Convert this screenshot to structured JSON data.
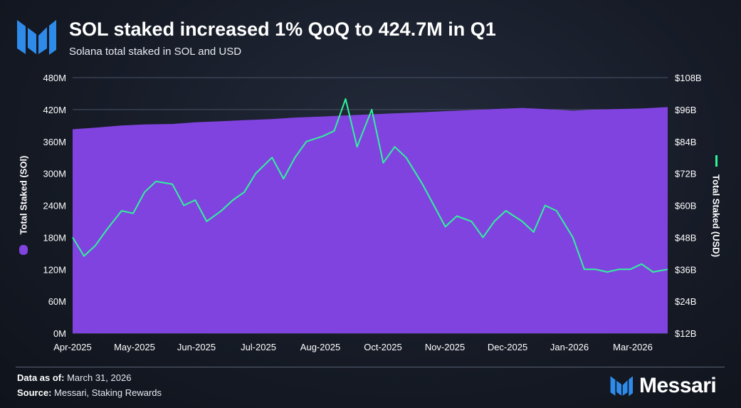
{
  "header": {
    "title": "SOL staked increased 1% QoQ to 424.7M in Q1",
    "subtitle": "Solana total staked in SOL and USD"
  },
  "footer": {
    "data_as_of_label": "Data as of:",
    "data_as_of_value": "March 31, 2026",
    "source_label": "Source:",
    "source_value": "Messari, Staking Rewards",
    "brand": "Messari"
  },
  "colors": {
    "sol_area": "#8143e0",
    "usd_line": "#2ef49a",
    "grid": "#4a5266",
    "brand_blue": "#2e8bea"
  },
  "chart_data": {
    "type": "area",
    "x_ticks": [
      "Apr-2025",
      "May-2025",
      "Jun-2025",
      "Jul-2025",
      "Aug-2025",
      "Oct-2025",
      "Nov-2025",
      "Dec-2025",
      "Jan-2026",
      "Mar-2026"
    ],
    "left_axis": {
      "label": "Total Staked (SOl)",
      "ticks": [
        "0M",
        "60M",
        "120M",
        "180M",
        "240M",
        "300M",
        "360M",
        "420M",
        "480M"
      ],
      "range": [
        0,
        480
      ]
    },
    "right_axis": {
      "label": "Total Staked (USD)",
      "ticks": [
        "$12B",
        "$24B",
        "$36B",
        "$48B",
        "$60B",
        "$72B",
        "$84B",
        "$96B",
        "$108B"
      ],
      "range": [
        12,
        108
      ]
    },
    "grid": true,
    "series": [
      {
        "name": "Total Staked (SOl)",
        "type": "area",
        "axis": "left",
        "unit": "M SOL",
        "x": [
          "2025-04-01",
          "2025-04-15",
          "2025-05-01",
          "2025-05-15",
          "2025-06-01",
          "2025-06-15",
          "2025-07-01",
          "2025-07-15",
          "2025-08-01",
          "2025-08-15",
          "2025-09-01",
          "2025-09-15",
          "2025-10-01",
          "2025-10-15",
          "2025-11-01",
          "2025-11-15",
          "2025-12-01",
          "2025-12-15",
          "2026-01-01",
          "2026-01-15",
          "2026-02-01",
          "2026-02-15",
          "2026-03-01",
          "2026-03-15",
          "2026-03-31"
        ],
        "values": [
          383,
          386,
          390,
          392,
          393,
          396,
          398,
          400,
          402,
          405,
          407,
          409,
          411,
          413,
          415,
          417,
          419,
          421,
          423,
          421,
          418,
          420,
          421,
          422,
          424.7
        ]
      },
      {
        "name": "Total Staked (USD)",
        "type": "line",
        "axis": "right",
        "unit": "$B",
        "x": [
          "2025-04-01",
          "2025-04-08",
          "2025-04-15",
          "2025-04-22",
          "2025-05-01",
          "2025-05-08",
          "2025-05-15",
          "2025-05-22",
          "2025-06-01",
          "2025-06-08",
          "2025-06-15",
          "2025-06-22",
          "2025-07-01",
          "2025-07-08",
          "2025-07-15",
          "2025-07-22",
          "2025-08-01",
          "2025-08-08",
          "2025-08-15",
          "2025-08-22",
          "2025-09-01",
          "2025-09-08",
          "2025-09-15",
          "2025-09-22",
          "2025-10-01",
          "2025-10-08",
          "2025-10-15",
          "2025-10-22",
          "2025-11-01",
          "2025-11-08",
          "2025-11-15",
          "2025-11-22",
          "2025-12-01",
          "2025-12-08",
          "2025-12-15",
          "2025-12-22",
          "2026-01-01",
          "2026-01-08",
          "2026-01-15",
          "2026-01-22",
          "2026-02-01",
          "2026-02-08",
          "2026-02-15",
          "2026-02-22",
          "2026-03-01",
          "2026-03-08",
          "2026-03-15",
          "2026-03-22",
          "2026-03-31"
        ],
        "values": [
          48,
          41,
          45,
          51,
          58,
          57,
          65,
          69,
          68,
          60,
          62,
          54,
          58,
          62,
          65,
          72,
          78,
          70,
          78,
          84,
          86,
          88,
          100,
          82,
          96,
          76,
          82,
          78,
          68,
          60,
          52,
          56,
          54,
          48,
          54,
          58,
          54,
          50,
          60,
          58,
          48,
          36,
          36,
          35,
          36,
          36,
          38,
          35,
          36
        ]
      }
    ]
  }
}
